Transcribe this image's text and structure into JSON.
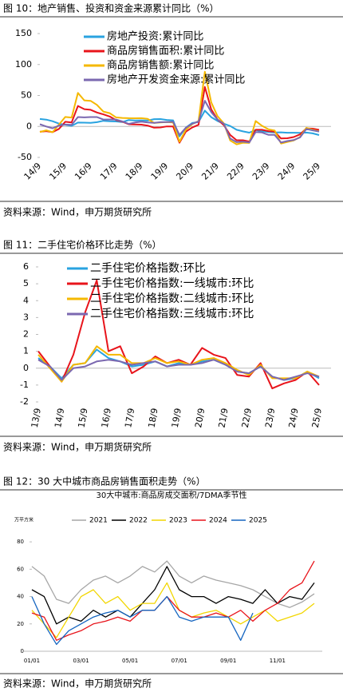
{
  "chart_data": [
    {
      "type": "line",
      "caption": "图 10：地产销售、投资和资金来源累计同比（%）",
      "source": "资料来源：Wind，申万期货研究所",
      "categories": [
        "14/9",
        null,
        null,
        null,
        "15/9",
        null,
        null,
        null,
        "16/9",
        null,
        null,
        null,
        "17/9",
        null,
        null,
        null,
        "18/9",
        null,
        null,
        null,
        "19/9",
        null,
        null,
        null,
        "20/9",
        null,
        null,
        null,
        "21/9",
        null,
        null,
        null,
        "22/9",
        null,
        null,
        null,
        "23/9",
        null,
        null,
        null,
        "24/9",
        null,
        null,
        null,
        "25/9"
      ],
      "ylim": [
        -50,
        150
      ],
      "yticks": [
        -50,
        0,
        50,
        100,
        150
      ],
      "series": [
        {
          "name": "房地产投资:累计同比",
          "color": "#29a3e0",
          "values": [
            12,
            11,
            8.5,
            4.6,
            2.6,
            1,
            6.2,
            6.1,
            5.8,
            6.9,
            9.1,
            8.5,
            8.1,
            7,
            10.4,
            9.7,
            9.9,
            9.5,
            11.8,
            11.9,
            10.5,
            9.9,
            -16,
            -1.9,
            5.6,
            7,
            25.6,
            15,
            8.8,
            4.4,
            0.7,
            -5.4,
            -8,
            -10,
            -5.8,
            -7.9,
            -9.1,
            -9.6,
            -9.5,
            -10.1,
            -10.1,
            -10.2,
            -9.9,
            -11.2,
            -13.9
          ]
        },
        {
          "name": "商品房销售面积:累计同比",
          "color": "#e8141b",
          "values": [
            -8.6,
            -7.6,
            -9.2,
            -3.9,
            7.5,
            6.5,
            33.1,
            27.9,
            26.9,
            22.5,
            19.5,
            16.1,
            10.3,
            7.7,
            3.6,
            3.3,
            2.9,
            1.3,
            -2,
            -1.6,
            0.1,
            -0.1,
            -26.3,
            -8.4,
            -1.8,
            2.6,
            63.8,
            27.7,
            11.3,
            1.9,
            -13.8,
            -22.2,
            -22.2,
            -24.3,
            -5.3,
            -5.3,
            -7.5,
            -8.5,
            -19.4,
            -19,
            -17.1,
            -12.9,
            -3,
            -3.5,
            -5.5
          ]
        },
        {
          "name": "商品房销售额:累计同比",
          "color": "#f5b800",
          "values": [
            -8.9,
            -6.3,
            -9.3,
            3,
            15.3,
            14.4,
            54.1,
            42.1,
            41.3,
            34.8,
            24.1,
            21.5,
            14.6,
            13.7,
            13.4,
            13.2,
            13.3,
            12.2,
            5.6,
            6.5,
            7.1,
            6.5,
            -24.7,
            -5.4,
            3.7,
            8.7,
            88.5,
            38.9,
            16.6,
            4.8,
            -22.7,
            -28.9,
            -26.3,
            -26.7,
            8.8,
            1.1,
            -4.6,
            -6.5,
            -27.6,
            -25,
            -22.7,
            -17.1,
            -2.1,
            -5.5,
            -7.9
          ]
        },
        {
          "name": "房地产开发资金来源:累计同比",
          "color": "#7b68b0",
          "values": [
            3.5,
            -0.1,
            -2.9,
            1.4,
            3,
            2.6,
            15.2,
            14.7,
            15.2,
            15.2,
            11.2,
            11.3,
            11.1,
            8.2,
            4.2,
            6.4,
            7.7,
            6.4,
            5.9,
            6.9,
            7.1,
            7.6,
            -13.6,
            -2.1,
            4.3,
            8.1,
            41.5,
            23.2,
            11.1,
            4.2,
            -19.6,
            -25.3,
            -24.5,
            -25.9,
            -9,
            -9.8,
            -13.5,
            -13.6,
            -26,
            -23.6,
            -22,
            -17.7,
            -4.1,
            -6.2,
            -8.3
          ]
        }
      ]
    },
    {
      "type": "line",
      "caption": "图 11：二手住宅价格环比走势（%）",
      "source": "资料来源：Wind，申万期货研究所",
      "categories": [
        "13/9",
        null,
        "14/9",
        null,
        "15/9",
        null,
        "16/9",
        null,
        "17/9",
        null,
        "18/9",
        null,
        "19/9",
        null,
        "20/9",
        null,
        "21/9",
        null,
        "22/9",
        null,
        "23/9",
        null,
        "24/9",
        null,
        "25/9"
      ],
      "ylim": [
        -2,
        6
      ],
      "yticks": [
        -2,
        -1,
        0,
        1,
        2,
        3,
        4,
        5,
        6
      ],
      "series": [
        {
          "name": "二手住宅价格指数:环比",
          "color": "#29a3e0",
          "values": [
            0.6,
            0.1,
            -0.6,
            0.2,
            0.3,
            1.1,
            0.6,
            0.4,
            0.1,
            0.2,
            0.4,
            0.1,
            0.3,
            0.2,
            0.4,
            0.5,
            0.2,
            -0.2,
            -0.3,
            0.1,
            -0.5,
            -0.7,
            -0.6,
            -0.2,
            -0.6
          ]
        },
        {
          "name": "二手住宅价格指数:一线城市:环比",
          "color": "#e8141b",
          "values": [
            1,
            0.1,
            -0.8,
            0.8,
            3.3,
            5.2,
            1,
            1.3,
            -0.3,
            0.1,
            0.7,
            0.3,
            0.5,
            0.2,
            1.2,
            0.8,
            0.6,
            -0.4,
            -0.5,
            0.3,
            -1.2,
            -0.9,
            -0.7,
            -0.2,
            -1
          ]
        },
        {
          "name": "二手住宅价格指数:二线城市:环比",
          "color": "#f5b800",
          "values": [
            0.8,
            0,
            -0.8,
            0.2,
            0.3,
            1.3,
            0.8,
            0.8,
            0.3,
            0.3,
            0.6,
            0.3,
            0.4,
            0.2,
            0.5,
            0.6,
            0.3,
            -0.1,
            -0.4,
            0.2,
            -0.6,
            -0.6,
            -0.6,
            -0.2,
            -0.5
          ]
        },
        {
          "name": "二手住宅价格指数:三线城市:环比",
          "color": "#7b68b0",
          "values": [
            0.5,
            0.1,
            -0.7,
            0,
            0.1,
            0.4,
            0.5,
            0.4,
            0.2,
            0.3,
            0.4,
            0.1,
            0.2,
            0.2,
            0.3,
            0.5,
            0.2,
            -0.2,
            -0.3,
            0.1,
            -0.5,
            -0.7,
            -0.5,
            -0.3,
            -0.5
          ]
        }
      ]
    },
    {
      "type": "line",
      "caption": "图 12：30 大中城市商品房销售面积走势（%）",
      "title": "30大中城市:商品房成交面积/7DMA季节性",
      "y_unit": "万平方米",
      "source": "资料来源：Wind，申万期货研究所",
      "categories": [
        "01/01",
        null,
        null,
        null,
        "03/01",
        null,
        null,
        null,
        "05/01",
        null,
        null,
        null,
        "07/01",
        null,
        null,
        null,
        "09/01",
        null,
        null,
        null,
        "11/01",
        null,
        null,
        null
      ],
      "ylim": [
        0,
        90
      ],
      "yticks": [
        0,
        20,
        40,
        60,
        80
      ],
      "series": [
        {
          "name": "2021",
          "color": "#a6a6a6",
          "values": [
            62,
            55,
            38,
            35,
            45,
            52,
            55,
            50,
            55,
            62,
            58,
            66,
            55,
            50,
            55,
            52,
            50,
            48,
            45,
            40,
            35,
            32,
            36,
            42
          ]
        },
        {
          "name": "2022",
          "color": "#000000",
          "values": [
            45,
            40,
            20,
            25,
            22,
            30,
            25,
            30,
            25,
            35,
            45,
            62,
            45,
            40,
            40,
            35,
            40,
            38,
            35,
            45,
            35,
            40,
            38,
            50
          ]
        },
        {
          "name": "2023",
          "color": "#f2d600",
          "values": [
            30,
            20,
            10,
            25,
            40,
            45,
            35,
            40,
            30,
            35,
            35,
            50,
            30,
            25,
            28,
            30,
            25,
            20,
            25,
            30,
            22,
            25,
            28,
            35
          ]
        },
        {
          "name": "2024",
          "color": "#e8141b",
          "values": [
            28,
            25,
            8,
            12,
            15,
            20,
            22,
            25,
            22,
            30,
            30,
            40,
            30,
            25,
            25,
            28,
            25,
            30,
            22,
            30,
            35,
            45,
            50,
            66
          ]
        },
        {
          "name": "2025",
          "color": "#1565c0",
          "values": [
            40,
            20,
            5,
            15,
            20,
            25,
            28,
            30,
            25,
            30,
            30,
            40,
            25,
            22,
            25,
            25,
            25,
            8,
            28,
            null,
            null,
            null,
            null,
            null
          ]
        }
      ]
    }
  ]
}
